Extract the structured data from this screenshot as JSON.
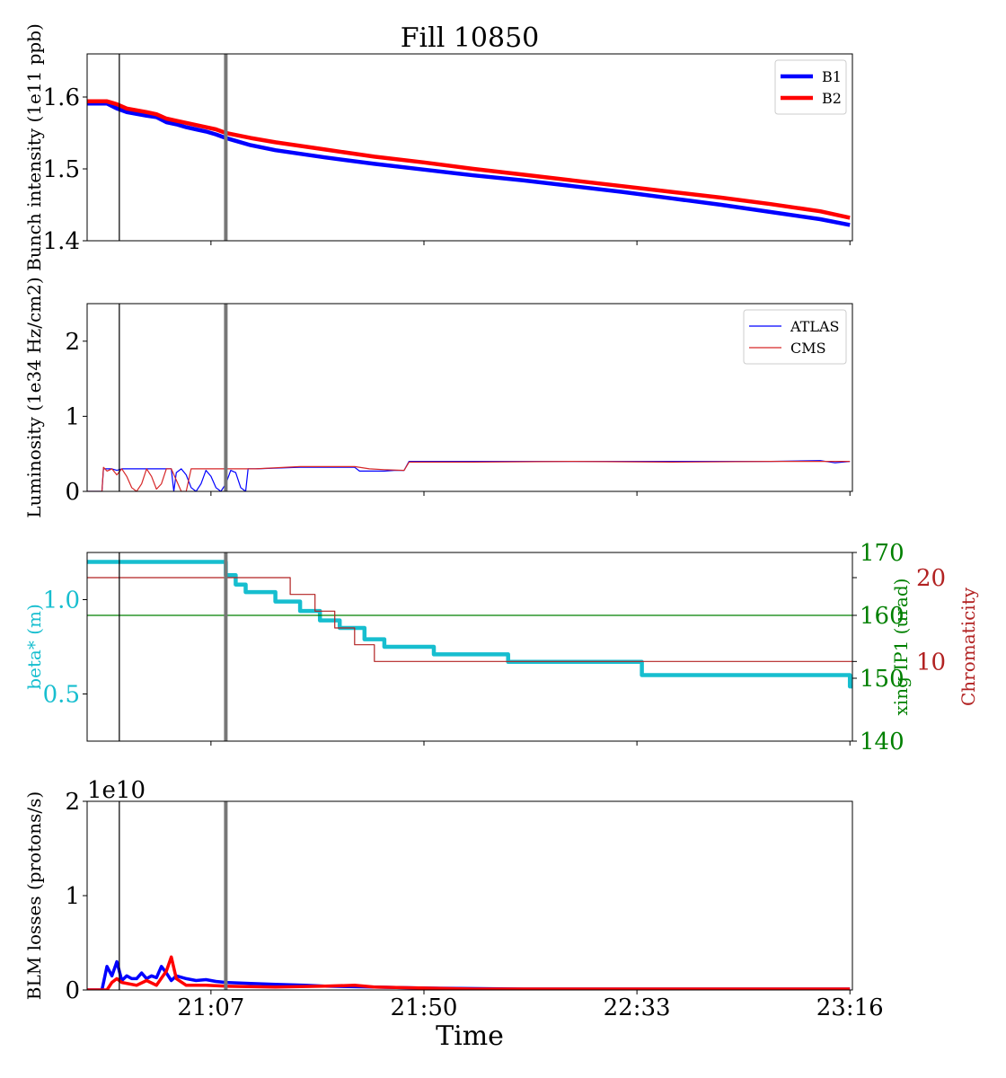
{
  "figure_title": "Fill 10850",
  "x_axis": {
    "label": "Time",
    "range_minutes": [
      1242,
      1396.5
    ],
    "ticks": [
      {
        "label": "21:07",
        "minute": 1267
      },
      {
        "label": "21:50",
        "minute": 1310
      },
      {
        "label": "22:33",
        "minute": 1353
      },
      {
        "label": "23:16",
        "minute": 1396
      }
    ]
  },
  "markers": {
    "thin_line_minute": 1248.5,
    "thick_line_minute": 1270.0
  },
  "chart_data": [
    {
      "type": "line",
      "ylabel": "Bunch intensity (1e11 ppb)",
      "ylim": [
        1.4,
        1.66
      ],
      "yticks": [
        "1.4",
        "1.5",
        "1.6"
      ],
      "ytick_values": [
        1.4,
        1.5,
        1.6
      ],
      "legend_placement": "top-right",
      "series": [
        {
          "name": "B1",
          "color": "#0000ff",
          "points": [
            [
              1242,
              1.591
            ],
            [
              1246,
              1.591
            ],
            [
              1248,
              1.584
            ],
            [
              1250,
              1.579
            ],
            [
              1254,
              1.574
            ],
            [
              1256,
              1.572
            ],
            [
              1258,
              1.565
            ],
            [
              1260,
              1.562
            ],
            [
              1262,
              1.558
            ],
            [
              1264,
              1.555
            ],
            [
              1266,
              1.552
            ],
            [
              1268,
              1.548
            ],
            [
              1270,
              1.543
            ],
            [
              1272,
              1.539
            ],
            [
              1275,
              1.533
            ],
            [
              1280,
              1.526
            ],
            [
              1290,
              1.516
            ],
            [
              1300,
              1.507
            ],
            [
              1310,
              1.499
            ],
            [
              1320,
              1.491
            ],
            [
              1330,
              1.484
            ],
            [
              1340,
              1.476
            ],
            [
              1350,
              1.468
            ],
            [
              1360,
              1.459
            ],
            [
              1370,
              1.45
            ],
            [
              1380,
              1.44
            ],
            [
              1390,
              1.43
            ],
            [
              1396,
              1.422
            ]
          ]
        },
        {
          "name": "B2",
          "color": "#ff0000",
          "points": [
            [
              1242,
              1.594
            ],
            [
              1246,
              1.594
            ],
            [
              1248,
              1.59
            ],
            [
              1250,
              1.584
            ],
            [
              1254,
              1.579
            ],
            [
              1256,
              1.576
            ],
            [
              1258,
              1.57
            ],
            [
              1260,
              1.567
            ],
            [
              1262,
              1.564
            ],
            [
              1264,
              1.561
            ],
            [
              1266,
              1.558
            ],
            [
              1268,
              1.555
            ],
            [
              1270,
              1.55
            ],
            [
              1275,
              1.543
            ],
            [
              1280,
              1.537
            ],
            [
              1290,
              1.527
            ],
            [
              1300,
              1.517
            ],
            [
              1310,
              1.509
            ],
            [
              1320,
              1.5
            ],
            [
              1330,
              1.492
            ],
            [
              1340,
              1.484
            ],
            [
              1350,
              1.476
            ],
            [
              1360,
              1.468
            ],
            [
              1370,
              1.46
            ],
            [
              1380,
              1.451
            ],
            [
              1390,
              1.441
            ],
            [
              1396,
              1.432
            ]
          ]
        }
      ]
    },
    {
      "type": "line",
      "ylabel": "Luminosity (1e34 Hz/cm2)",
      "ylim": [
        0,
        2.5
      ],
      "yticks": [
        "0",
        "1",
        "2"
      ],
      "ytick_values": [
        0,
        1,
        2
      ],
      "legend_placement": "top-right",
      "series": [
        {
          "name": "ATLAS",
          "color": "#0000ff",
          "points": [
            [
              1242,
              0
            ],
            [
              1245,
              0
            ],
            [
              1245.3,
              0.3
            ],
            [
              1247,
              0.3
            ],
            [
              1248,
              0.28
            ],
            [
              1249,
              0.3
            ],
            [
              1259,
              0.3
            ],
            [
              1259.5,
              0
            ],
            [
              1260,
              0.25
            ],
            [
              1261,
              0.3
            ],
            [
              1262,
              0.22
            ],
            [
              1263,
              0.05
            ],
            [
              1264,
              0
            ],
            [
              1265,
              0.1
            ],
            [
              1266,
              0.28
            ],
            [
              1267,
              0.2
            ],
            [
              1268,
              0.05
            ],
            [
              1269,
              0
            ],
            [
              1270,
              0.1
            ],
            [
              1271,
              0.28
            ],
            [
              1272,
              0.25
            ],
            [
              1273,
              0.05
            ],
            [
              1274,
              0
            ],
            [
              1274.5,
              0.3
            ],
            [
              1276,
              0.3
            ],
            [
              1285,
              0.32
            ],
            [
              1296,
              0.32
            ],
            [
              1297,
              0.27
            ],
            [
              1302,
              0.27
            ],
            [
              1304,
              0.28
            ],
            [
              1306,
              0.28
            ],
            [
              1307,
              0.4
            ],
            [
              1320,
              0.4
            ],
            [
              1340,
              0.4
            ],
            [
              1360,
              0.4
            ],
            [
              1380,
              0.4
            ],
            [
              1390,
              0.41
            ],
            [
              1393,
              0.38
            ],
            [
              1396,
              0.4
            ]
          ]
        },
        {
          "name": "CMS",
          "color": "#d62728",
          "points": [
            [
              1242,
              0
            ],
            [
              1245,
              0
            ],
            [
              1245.3,
              0.32
            ],
            [
              1246,
              0.27
            ],
            [
              1247,
              0.3
            ],
            [
              1248,
              0.22
            ],
            [
              1249,
              0.3
            ],
            [
              1250,
              0.2
            ],
            [
              1251,
              0.05
            ],
            [
              1252,
              0
            ],
            [
              1253,
              0.1
            ],
            [
              1254,
              0.3
            ],
            [
              1255,
              0.2
            ],
            [
              1256,
              0.03
            ],
            [
              1257,
              0.1
            ],
            [
              1258,
              0.3
            ],
            [
              1259,
              0.3
            ],
            [
              1260,
              0.15
            ],
            [
              1261,
              0
            ],
            [
              1262,
              0
            ],
            [
              1263,
              0.3
            ],
            [
              1276,
              0.3
            ],
            [
              1285,
              0.33
            ],
            [
              1296,
              0.33
            ],
            [
              1299,
              0.3
            ],
            [
              1302,
              0.29
            ],
            [
              1306,
              0.28
            ],
            [
              1307,
              0.39
            ],
            [
              1320,
              0.39
            ],
            [
              1340,
              0.4
            ],
            [
              1360,
              0.39
            ],
            [
              1380,
              0.4
            ],
            [
              1390,
              0.4
            ],
            [
              1396,
              0.4
            ]
          ]
        }
      ]
    },
    {
      "type": "line",
      "ylabel": "beta* (m)",
      "ylim": [
        0.25,
        1.25
      ],
      "yticks": [
        "0.5",
        "1.0"
      ],
      "ytick_values": [
        0.5,
        1.0
      ],
      "right_axes": [
        {
          "ylabel": "xing IP1 (urad)",
          "ylim": [
            140,
            170
          ],
          "yticks": [
            "140",
            "150",
            "160",
            "170"
          ],
          "ytick_values": [
            140,
            150,
            160,
            170
          ],
          "color": "#008000"
        },
        {
          "ylabel": "Chromaticity",
          "ylim": [
            0.5,
            23
          ],
          "yticks": [
            "10",
            "20"
          ],
          "ytick_values": [
            10,
            20
          ],
          "color": "#b22222"
        }
      ],
      "series": [
        {
          "color": "#17becf",
          "axis": "beta",
          "points": [
            [
              1242,
              1.2
            ],
            [
              1270,
              1.2
            ],
            [
              1270,
              1.13
            ],
            [
              1272,
              1.13
            ],
            [
              1272,
              1.08
            ],
            [
              1274,
              1.08
            ],
            [
              1274,
              1.04
            ],
            [
              1280,
              1.04
            ],
            [
              1280,
              0.99
            ],
            [
              1285,
              0.99
            ],
            [
              1285,
              0.94
            ],
            [
              1289,
              0.94
            ],
            [
              1289,
              0.89
            ],
            [
              1293,
              0.89
            ],
            [
              1293,
              0.85
            ],
            [
              1298,
              0.85
            ],
            [
              1298,
              0.79
            ],
            [
              1302,
              0.79
            ],
            [
              1302,
              0.75
            ],
            [
              1312,
              0.75
            ],
            [
              1312,
              0.71
            ],
            [
              1327,
              0.71
            ],
            [
              1327,
              0.67
            ],
            [
              1354,
              0.67
            ],
            [
              1354,
              0.6
            ],
            [
              1396,
              0.6
            ],
            [
              1396,
              0.54
            ],
            [
              1396.5,
              0.54
            ]
          ]
        },
        {
          "color": "#008000",
          "axis": "xing",
          "points": [
            [
              1242,
              160
            ],
            [
              1396.5,
              160
            ]
          ]
        },
        {
          "color": "#b22222",
          "axis": "chroma",
          "points": [
            [
              1242,
              20
            ],
            [
              1270,
              20
            ],
            [
              1270,
              20
            ],
            [
              1283,
              20
            ],
            [
              1283,
              18
            ],
            [
              1288,
              18
            ],
            [
              1288,
              16
            ],
            [
              1292,
              16
            ],
            [
              1292,
              14
            ],
            [
              1296,
              14
            ],
            [
              1296,
              12
            ],
            [
              1300,
              12
            ],
            [
              1300,
              10
            ],
            [
              1396.5,
              10
            ]
          ]
        }
      ]
    },
    {
      "type": "line",
      "ylabel": "BLM losses (protons/s)",
      "ylim": [
        0,
        2
      ],
      "yticks": [
        "0",
        "1",
        "2"
      ],
      "ytick_values": [
        0,
        1,
        2
      ],
      "offset_text": "1e10",
      "series": [
        {
          "color": "#0000ff",
          "points": [
            [
              1242,
              0
            ],
            [
              1245,
              0
            ],
            [
              1246,
              0.25
            ],
            [
              1247,
              0.15
            ],
            [
              1248,
              0.3
            ],
            [
              1249,
              0.1
            ],
            [
              1250,
              0.15
            ],
            [
              1251,
              0.12
            ],
            [
              1252,
              0.12
            ],
            [
              1253,
              0.18
            ],
            [
              1254,
              0.12
            ],
            [
              1255,
              0.15
            ],
            [
              1256,
              0.13
            ],
            [
              1257,
              0.25
            ],
            [
              1258,
              0.18
            ],
            [
              1259,
              0.1
            ],
            [
              1260,
              0.15
            ],
            [
              1262,
              0.12
            ],
            [
              1264,
              0.1
            ],
            [
              1266,
              0.11
            ],
            [
              1268,
              0.09
            ],
            [
              1270,
              0.08
            ],
            [
              1275,
              0.07
            ],
            [
              1280,
              0.06
            ],
            [
              1286,
              0.05
            ],
            [
              1290,
              0.04
            ],
            [
              1300,
              0.03
            ],
            [
              1310,
              0.02
            ],
            [
              1330,
              0.01
            ],
            [
              1380,
              0.01
            ],
            [
              1396,
              0.01
            ]
          ]
        },
        {
          "color": "#ff0000",
          "points": [
            [
              1242,
              0
            ],
            [
              1246,
              0
            ],
            [
              1247,
              0.08
            ],
            [
              1248,
              0.12
            ],
            [
              1249,
              0.08
            ],
            [
              1252,
              0.05
            ],
            [
              1254,
              0.1
            ],
            [
              1256,
              0.05
            ],
            [
              1258,
              0.2
            ],
            [
              1259,
              0.35
            ],
            [
              1260,
              0.12
            ],
            [
              1262,
              0.05
            ],
            [
              1266,
              0.05
            ],
            [
              1270,
              0.04
            ],
            [
              1280,
              0.03
            ],
            [
              1290,
              0.04
            ],
            [
              1296,
              0.05
            ],
            [
              1300,
              0.03
            ],
            [
              1310,
              0.02
            ],
            [
              1320,
              0.01
            ],
            [
              1380,
              0.01
            ],
            [
              1396,
              0.01
            ]
          ]
        }
      ]
    }
  ]
}
